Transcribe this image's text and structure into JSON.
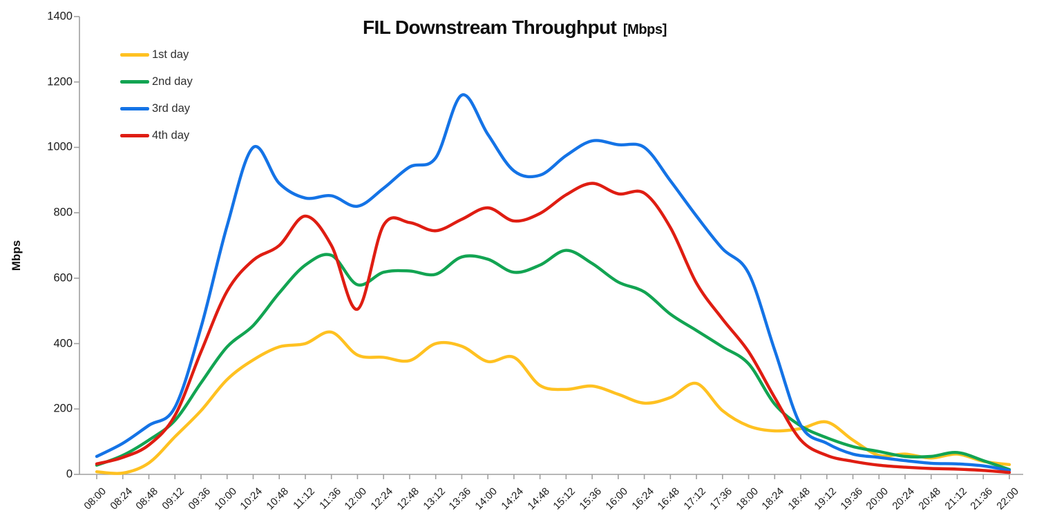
{
  "title": {
    "main": "FIL Downstream Throughput",
    "unit": "[Mbps]"
  },
  "y_axis": {
    "title": "Mbps"
  },
  "colors": {
    "axis": "#9f9f9f",
    "text": "#1a1a1a"
  },
  "chart_data": {
    "type": "line",
    "title": "FIL Downstream Throughput [Mbps]",
    "xlabel": "",
    "ylabel": "Mbps",
    "ylim": [
      0,
      1400
    ],
    "y_ticks": [
      0,
      200,
      400,
      600,
      800,
      1000,
      1200,
      1400
    ],
    "grid": false,
    "smooth": true,
    "legend_position": "top-left",
    "x": [
      "08:00",
      "08:24",
      "08:48",
      "09:12",
      "09:36",
      "10:00",
      "10:24",
      "10:48",
      "11:12",
      "11:36",
      "12:00",
      "12:24",
      "12:48",
      "13:12",
      "13:36",
      "14:00",
      "14:24",
      "14:48",
      "15:12",
      "15:36",
      "16:00",
      "16:24",
      "16:48",
      "17:12",
      "17:36",
      "18:00",
      "18:24",
      "18:48",
      "19:12",
      "19:36",
      "20:00",
      "20:24",
      "20:48",
      "21:12",
      "21:36",
      "22:00"
    ],
    "series": [
      {
        "name": "1st day",
        "color": "#FFC121",
        "values": [
          8,
          4,
          35,
          115,
          195,
          290,
          350,
          390,
          400,
          435,
          365,
          358,
          348,
          400,
          392,
          345,
          358,
          272,
          260,
          270,
          245,
          218,
          235,
          278,
          195,
          148,
          133,
          140,
          160,
          105,
          58,
          62,
          50,
          62,
          40,
          30
        ]
      },
      {
        "name": "2nd day",
        "color": "#12A452",
        "values": [
          28,
          58,
          105,
          165,
          280,
          390,
          455,
          555,
          640,
          670,
          580,
          618,
          622,
          612,
          665,
          658,
          618,
          640,
          685,
          645,
          588,
          558,
          490,
          440,
          390,
          338,
          215,
          148,
          112,
          85,
          70,
          55,
          55,
          67,
          42,
          15
        ]
      },
      {
        "name": "3rd day",
        "color": "#1473E6",
        "values": [
          55,
          95,
          150,
          205,
          450,
          760,
          1000,
          890,
          845,
          852,
          820,
          875,
          940,
          968,
          1160,
          1040,
          928,
          915,
          975,
          1020,
          1008,
          1000,
          898,
          790,
          690,
          615,
          380,
          150,
          95,
          62,
          52,
          42,
          34,
          32,
          26,
          12
        ]
      },
      {
        "name": "4th day",
        "color": "#DF1D12",
        "values": [
          32,
          52,
          90,
          180,
          375,
          560,
          655,
          700,
          790,
          700,
          505,
          762,
          770,
          745,
          780,
          815,
          775,
          798,
          855,
          890,
          858,
          860,
          755,
          585,
          475,
          375,
          235,
          105,
          58,
          40,
          28,
          22,
          18,
          16,
          12,
          6
        ]
      }
    ]
  }
}
